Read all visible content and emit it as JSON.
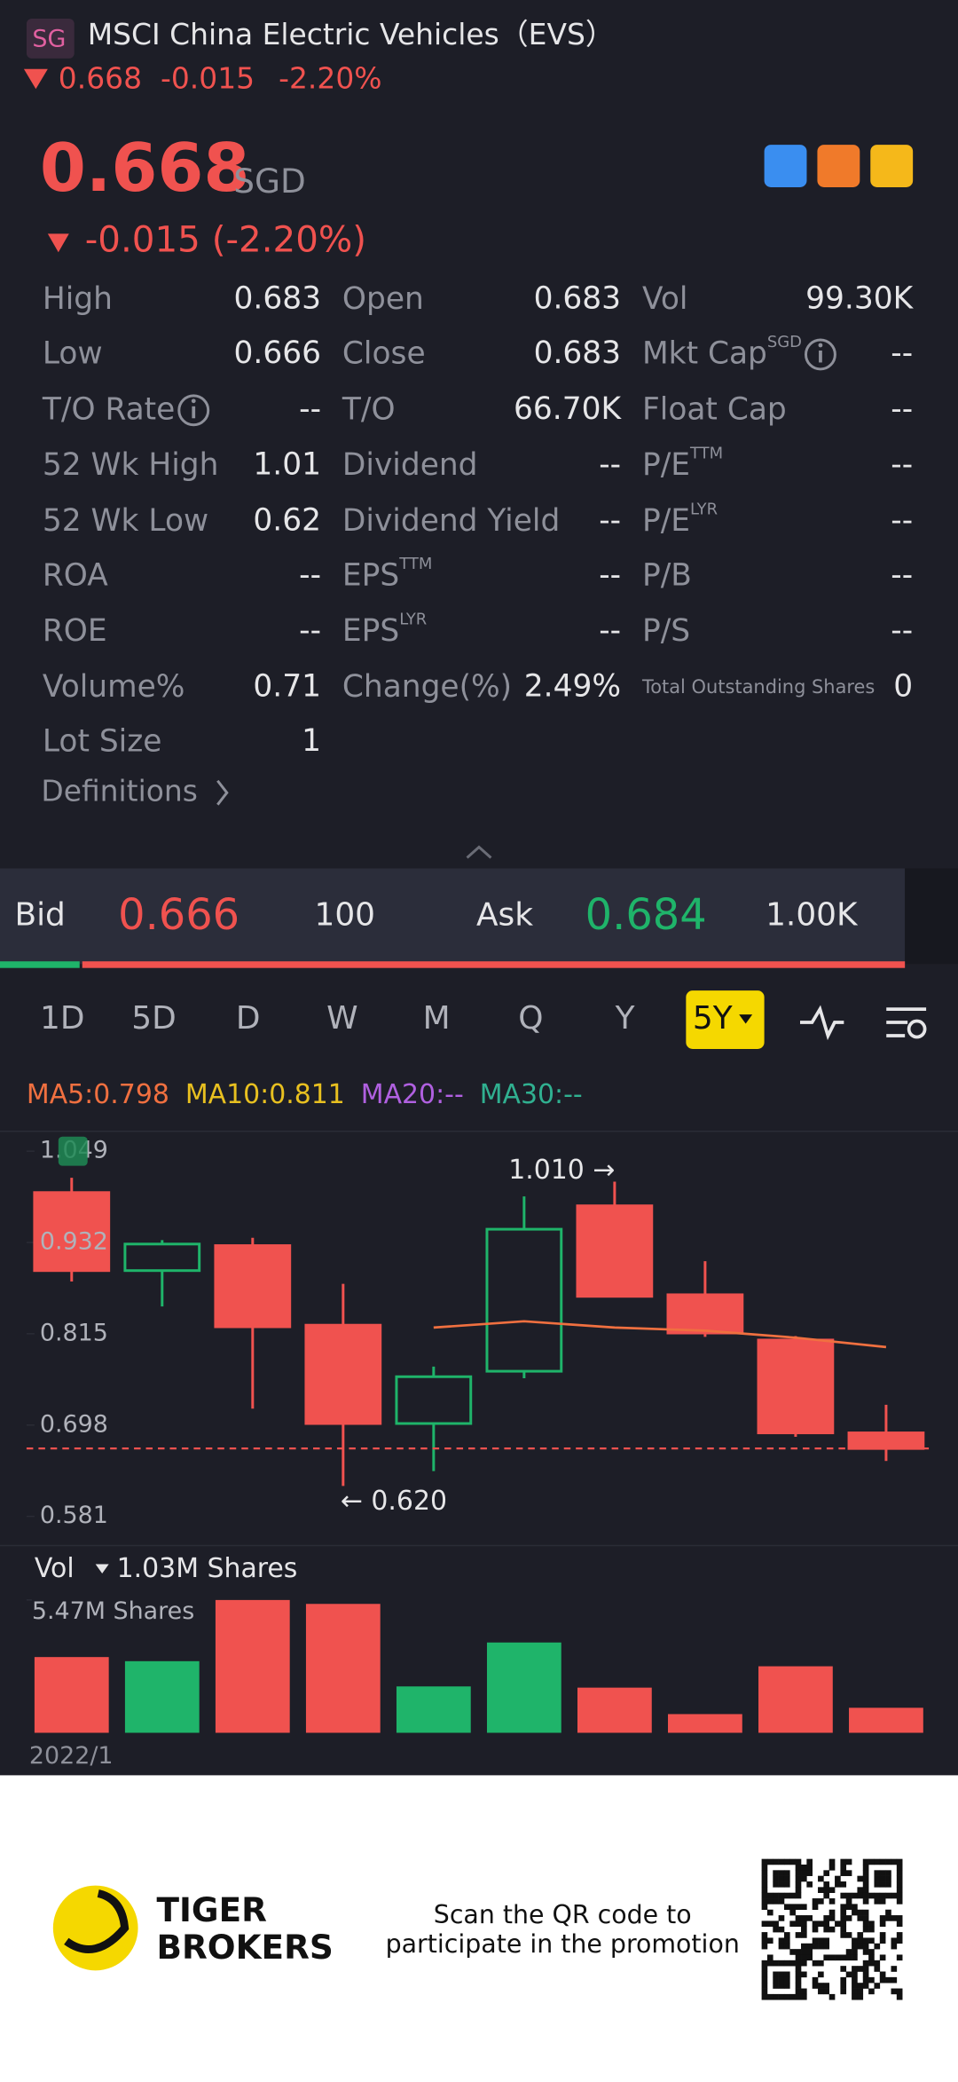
{
  "header": {
    "badge": "SG",
    "name": "MSCI China Electric Vehicles（EVS）",
    "price": "0.668",
    "change": "-0.015",
    "pct": "-2.20%"
  },
  "quote": {
    "price": "0.668",
    "currency": "SGD",
    "change": "-0.015 (-2.20%)"
  },
  "stats": {
    "rows": [
      [
        {
          "label": "High",
          "value": "0.683"
        },
        {
          "label": "Open",
          "value": "0.683"
        },
        {
          "label": "Vol",
          "value": "99.30K"
        }
      ],
      [
        {
          "label": "Low",
          "value": "0.666"
        },
        {
          "label": "Close",
          "value": "0.683"
        },
        {
          "label": "Mkt Cap",
          "sup": "SGD",
          "info": true,
          "value": "--"
        }
      ],
      [
        {
          "label": "T/O Rate",
          "info": true,
          "value": "--"
        },
        {
          "label": "T/O",
          "value": "66.70K"
        },
        {
          "label": "Float Cap",
          "value": "--"
        }
      ],
      [
        {
          "label": "52 Wk High",
          "value": "1.01"
        },
        {
          "label": "Dividend",
          "value": "--"
        },
        {
          "label": "P/E",
          "sup": "TTM",
          "value": "--"
        }
      ],
      [
        {
          "label": "52 Wk Low",
          "value": "0.62"
        },
        {
          "label": "Dividend Yield",
          "value": "--"
        },
        {
          "label": "P/E",
          "sup": "LYR",
          "value": "--"
        }
      ],
      [
        {
          "label": "ROA",
          "value": "--"
        },
        {
          "label": "EPS",
          "sup": "TTM",
          "value": "--"
        },
        {
          "label": "P/B",
          "value": "--"
        }
      ],
      [
        {
          "label": "ROE",
          "value": "--"
        },
        {
          "label": "EPS",
          "sup": "LYR",
          "value": "--"
        },
        {
          "label": "P/S",
          "value": "--"
        }
      ],
      [
        {
          "label": "Volume%",
          "value": "0.71"
        },
        {
          "label": "Change(%)",
          "value": "2.49%"
        },
        {
          "label": "Total Outstanding Shares",
          "value": "0"
        }
      ],
      [
        {
          "label": "Lot Size",
          "value": "1"
        }
      ]
    ],
    "definitions": "Definitions"
  },
  "orderbook": {
    "bid_label": "Bid",
    "bid": "0.666",
    "bid_size": "100",
    "ask_label": "Ask",
    "ask": "0.684",
    "ask_size": "1.00K"
  },
  "tabs": {
    "items": [
      "1D",
      "5D",
      "D",
      "W",
      "M",
      "Q",
      "Y",
      "5Y"
    ],
    "active": 7
  },
  "ma": [
    {
      "text": "MA5:0.798",
      "color": "#f07040"
    },
    {
      "text": "MA10:0.811",
      "color": "#e8c020"
    },
    {
      "text": "MA20:--",
      "color": "#b060e0"
    },
    {
      "text": "MA30:--",
      "color": "#30b090"
    }
  ],
  "chart": {
    "type": "candlestick",
    "ylim": [
      0.581,
      1.049
    ],
    "yticks": [
      1.049,
      0.932,
      0.815,
      0.698,
      0.581
    ],
    "up_color": "#1fb46a",
    "down_color": "#f0524f",
    "last": 0.668,
    "candles": [
      {
        "open": 0.996,
        "high": 1.015,
        "low": 0.882,
        "close": 0.896
      },
      {
        "open": 0.896,
        "high": 0.935,
        "low": 0.85,
        "close": 0.93
      },
      {
        "open": 0.928,
        "high": 0.938,
        "low": 0.719,
        "close": 0.824
      },
      {
        "open": 0.826,
        "high": 0.879,
        "low": 0.62,
        "close": 0.7
      },
      {
        "open": 0.7,
        "high": 0.773,
        "low": 0.639,
        "close": 0.76
      },
      {
        "open": 0.767,
        "high": 0.991,
        "low": 0.758,
        "close": 0.949
      },
      {
        "open": 0.979,
        "high": 1.01,
        "low": 0.863,
        "close": 0.863
      },
      {
        "open": 0.865,
        "high": 0.908,
        "low": 0.811,
        "close": 0.816
      },
      {
        "open": 0.807,
        "high": 0.812,
        "low": 0.683,
        "close": 0.688
      },
      {
        "open": 0.688,
        "high": 0.724,
        "low": 0.652,
        "close": 0.668
      }
    ],
    "ma_line": {
      "color": "#f07040",
      "values": [
        null,
        null,
        null,
        null,
        0.823,
        0.831,
        0.823,
        0.819,
        0.81,
        0.798
      ]
    },
    "annotations": [
      {
        "text": "1.010 →",
        "index": 6,
        "value": 1.01
      },
      {
        "text": "← 0.620",
        "index": 3,
        "value": 0.62
      }
    ],
    "volume": {
      "header": "Vol",
      "current": "1.03M Shares",
      "ylim": [
        0,
        5.47
      ],
      "yticks": [
        {
          "value": 5.47,
          "label": "5.47M Shares"
        }
      ],
      "values": [
        3.12,
        2.95,
        5.47,
        5.31,
        1.91,
        3.72,
        1.86,
        0.77,
        2.74,
        1.03
      ]
    },
    "x_label": "2022/1"
  },
  "footer": {
    "brand": [
      "TIGER",
      "BROKERS"
    ],
    "message": [
      "Scan the QR code to",
      "participate in the promotion"
    ]
  }
}
